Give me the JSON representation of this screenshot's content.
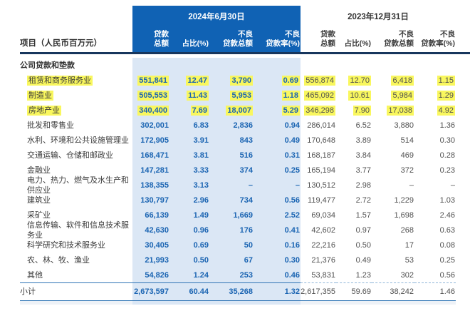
{
  "table": {
    "row_label_header": "项目（人民币百万元）",
    "groups": [
      {
        "title": "2024年6月30日",
        "columns": [
          "贷款\n总额",
          "占比(%)",
          "不良\n贷款总额",
          "不良\n贷款率(%)"
        ]
      },
      {
        "title": "2023年12月31日",
        "columns": [
          "贷款\n总额",
          "占比(%)",
          "不良\n贷款总额",
          "不良\n贷款率(%)"
        ]
      }
    ],
    "rows": [
      {
        "label": "公司贷款和垫款",
        "type": "section",
        "v2024": [
          "",
          "",
          "",
          ""
        ],
        "v2023": [
          "",
          "",
          "",
          ""
        ]
      },
      {
        "label": "租赁和商务服务业",
        "type": "highlight",
        "v2024": [
          "551,841",
          "12.47",
          "3,790",
          "0.69"
        ],
        "v2023": [
          "556,874",
          "12.70",
          "6,418",
          "1.15"
        ]
      },
      {
        "label": "制造业",
        "type": "highlight",
        "v2024": [
          "505,553",
          "11.43",
          "5,953",
          "1.18"
        ],
        "v2023": [
          "465,092",
          "10.61",
          "5,984",
          "1.29"
        ]
      },
      {
        "label": "房地产业",
        "type": "highlight",
        "v2024": [
          "340,400",
          "7.69",
          "18,007",
          "5.29"
        ],
        "v2023": [
          "346,298",
          "7.90",
          "17,038",
          "4.92"
        ]
      },
      {
        "label": "批发和零售业",
        "type": "normal",
        "v2024": [
          "302,001",
          "6.83",
          "2,836",
          "0.94"
        ],
        "v2023": [
          "286,014",
          "6.52",
          "3,880",
          "1.36"
        ]
      },
      {
        "label": "水利、环境和公共设施管理业",
        "type": "normal",
        "v2024": [
          "172,905",
          "3.91",
          "843",
          "0.49"
        ],
        "v2023": [
          "170,648",
          "3.89",
          "514",
          "0.30"
        ]
      },
      {
        "label": "交通运输、仓储和邮政业",
        "type": "normal",
        "v2024": [
          "168,471",
          "3.81",
          "516",
          "0.31"
        ],
        "v2023": [
          "168,187",
          "3.84",
          "469",
          "0.28"
        ]
      },
      {
        "label": "金融业",
        "type": "normal",
        "v2024": [
          "147,281",
          "3.33",
          "374",
          "0.25"
        ],
        "v2023": [
          "165,194",
          "3.77",
          "372",
          "0.23"
        ]
      },
      {
        "label": "电力、热力、燃气及水生产和供应业",
        "type": "normal",
        "v2024": [
          "138,355",
          "3.13",
          "–",
          "–"
        ],
        "v2023": [
          "130,512",
          "2.98",
          "–",
          "–"
        ]
      },
      {
        "label": "建筑业",
        "type": "normal",
        "v2024": [
          "130,797",
          "2.96",
          "734",
          "0.56"
        ],
        "v2023": [
          "119,477",
          "2.72",
          "1,229",
          "1.03"
        ]
      },
      {
        "label": "采矿业",
        "type": "normal",
        "v2024": [
          "66,139",
          "1.49",
          "1,669",
          "2.52"
        ],
        "v2023": [
          "69,034",
          "1.57",
          "1,698",
          "2.46"
        ]
      },
      {
        "label": "信息传输、软件和信息技术服务业",
        "type": "normal",
        "v2024": [
          "42,630",
          "0.96",
          "176",
          "0.41"
        ],
        "v2023": [
          "42,602",
          "0.97",
          "268",
          "0.63"
        ]
      },
      {
        "label": "科学研究和技术服务业",
        "type": "normal",
        "v2024": [
          "30,405",
          "0.69",
          "50",
          "0.16"
        ],
        "v2023": [
          "22,216",
          "0.50",
          "17",
          "0.08"
        ]
      },
      {
        "label": "农、林、牧、渔业",
        "type": "normal",
        "v2024": [
          "21,993",
          "0.50",
          "67",
          "0.30"
        ],
        "v2023": [
          "21,376",
          "0.49",
          "53",
          "0.25"
        ]
      },
      {
        "label": "其他",
        "type": "normal",
        "v2024": [
          "54,826",
          "1.24",
          "253",
          "0.46"
        ],
        "v2023": [
          "53,831",
          "1.23",
          "302",
          "0.56"
        ]
      },
      {
        "label": "小计",
        "type": "subtotal",
        "v2024": [
          "2,673,597",
          "60.44",
          "35,268",
          "1.32"
        ],
        "v2023": [
          "2,617,355",
          "59.69",
          "38,242",
          "1.46"
        ]
      }
    ],
    "colors": {
      "accent": "#1062b4",
      "band": "#dbe7f5",
      "navy_rule": "#17365d",
      "value_blue": "#1a64b2",
      "value_gray": "#4f4f4f",
      "highlight": "#f9f75e",
      "subtotal_rule": "#2e74b5"
    }
  }
}
